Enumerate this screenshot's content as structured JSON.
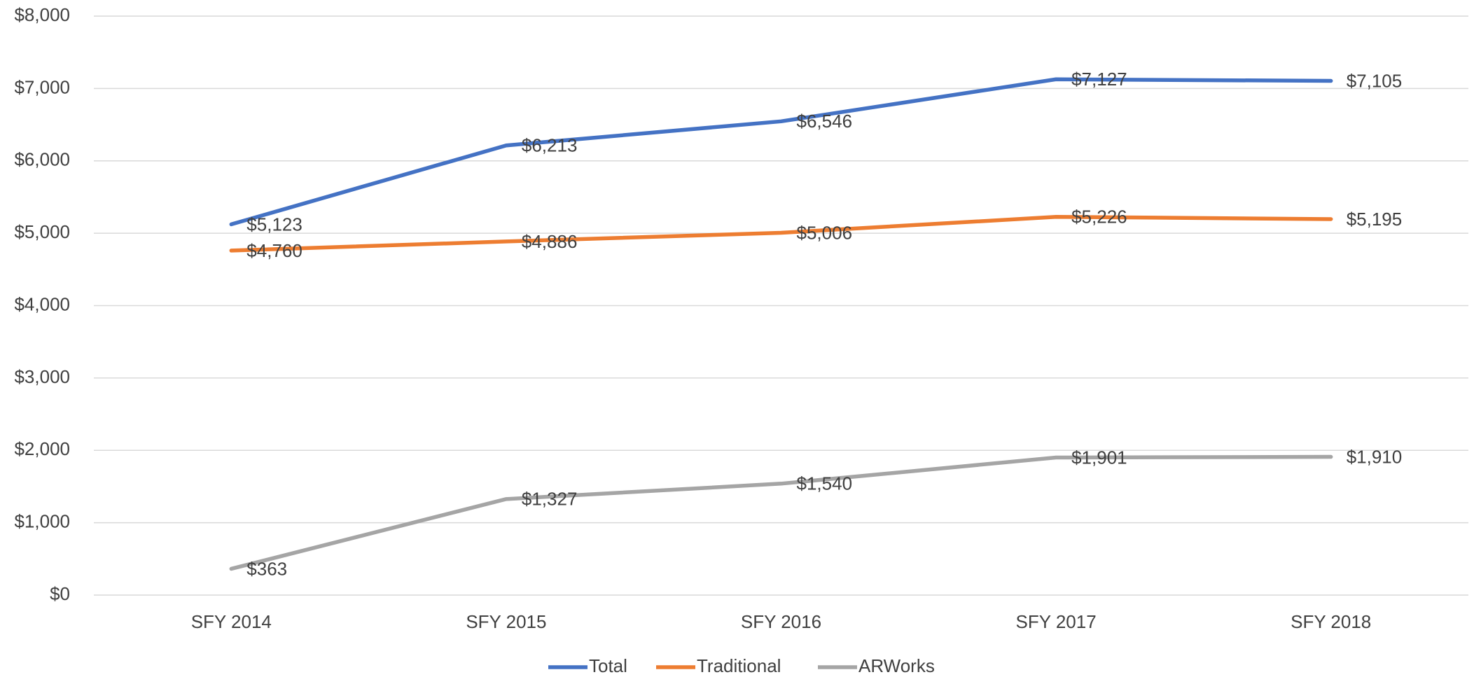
{
  "chart_data": {
    "type": "line",
    "categories": [
      "SFY 2014",
      "SFY 2015",
      "SFY 2016",
      "SFY 2017",
      "SFY 2018"
    ],
    "series": [
      {
        "name": "Total",
        "color": "#4472c4",
        "values": [
          5123,
          6213,
          6546,
          7127,
          7105
        ],
        "value_labels": [
          "$5,123",
          "$6,213",
          "$6,546",
          "$7,127",
          "$7,105"
        ]
      },
      {
        "name": "Traditional",
        "color": "#ed7d31",
        "values": [
          4760,
          4886,
          5006,
          5226,
          5195
        ],
        "value_labels": [
          "$4,760",
          "$4,886",
          "$5,006",
          "$5,226",
          "$5,195"
        ]
      },
      {
        "name": "ARWorks",
        "color": "#a5a5a5",
        "values": [
          363,
          1327,
          1540,
          1901,
          1910
        ],
        "value_labels": [
          "$363",
          "$1,327",
          "$1,540",
          "$1,901",
          "$1,910"
        ]
      }
    ],
    "ylim": [
      0,
      8000
    ],
    "yticks": [
      {
        "value": 0,
        "label": "$0"
      },
      {
        "value": 1000,
        "label": "$1,000"
      },
      {
        "value": 2000,
        "label": "$2,000"
      },
      {
        "value": 3000,
        "label": "$3,000"
      },
      {
        "value": 4000,
        "label": "$4,000"
      },
      {
        "value": 5000,
        "label": "$5,000"
      },
      {
        "value": 6000,
        "label": "$6,000"
      },
      {
        "value": 7000,
        "label": "$7,000"
      },
      {
        "value": 8000,
        "label": "$8,000"
      }
    ],
    "grid": true,
    "legend": "bottom"
  }
}
